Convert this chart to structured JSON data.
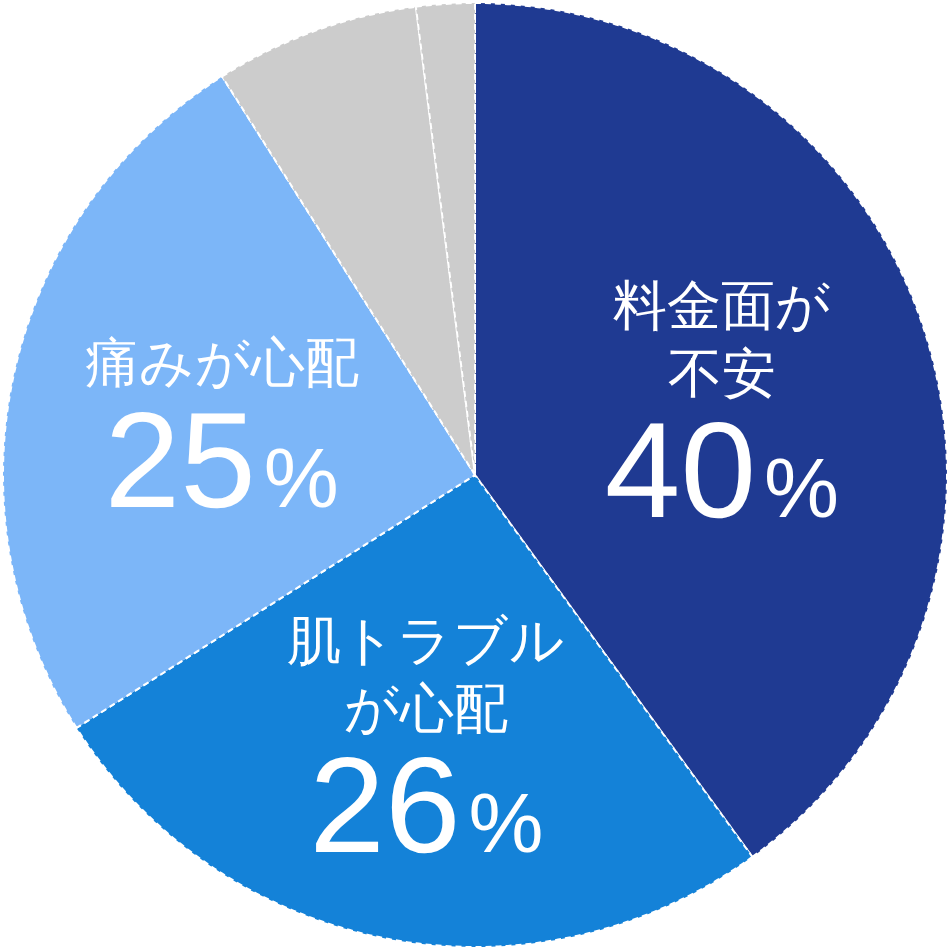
{
  "chart_data": {
    "type": "pie",
    "categories": [
      "料金面が不安",
      "肌トラブルが心配",
      "痛みが心配",
      null,
      null
    ],
    "values": [
      40,
      26,
      25,
      7,
      2
    ],
    "colors": [
      "#1f3a92",
      "#1482d8",
      "#7cb6f8",
      "#cccccc",
      "#cccccc"
    ],
    "value_labels": [
      "40%",
      "26%",
      "25%",
      null,
      null
    ]
  }
}
